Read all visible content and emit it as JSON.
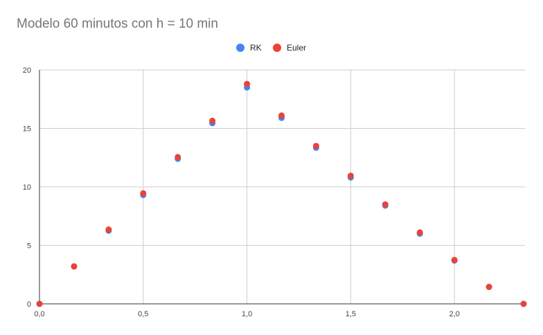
{
  "chart_data": {
    "type": "scatter",
    "title": "Modelo 60 minutos con h = 10 min",
    "xlabel": "",
    "ylabel": "",
    "xlim": [
      0,
      2.34
    ],
    "ylim": [
      0,
      20
    ],
    "x_ticks": [
      "0,0",
      "0,5",
      "1,0",
      "1,5",
      "2,0"
    ],
    "x_tick_values": [
      0,
      0.5,
      1.0,
      1.5,
      2.0
    ],
    "y_ticks": [
      "0",
      "5",
      "10",
      "15",
      "20"
    ],
    "y_tick_values": [
      0,
      5,
      10,
      15,
      20
    ],
    "grid": true,
    "legend_position": "top-center",
    "series": [
      {
        "name": "RK",
        "color": "#4285f4",
        "points": [
          [
            0,
            0
          ],
          [
            0.1667,
            3.2
          ],
          [
            0.3333,
            6.25
          ],
          [
            0.5,
            9.3
          ],
          [
            0.6667,
            12.4
          ],
          [
            0.8333,
            15.45
          ],
          [
            1.0,
            18.5
          ],
          [
            1.1667,
            15.9
          ],
          [
            1.3333,
            13.35
          ],
          [
            1.5,
            10.8
          ],
          [
            1.6667,
            8.4
          ],
          [
            1.8333,
            6.0
          ],
          [
            2.0,
            3.7
          ],
          [
            2.1667,
            1.45
          ],
          [
            2.3333,
            0
          ]
        ]
      },
      {
        "name": "Euler",
        "color": "#ea4335",
        "points": [
          [
            0,
            0
          ],
          [
            0.1667,
            3.2
          ],
          [
            0.3333,
            6.35
          ],
          [
            0.5,
            9.45
          ],
          [
            0.6667,
            12.55
          ],
          [
            0.8333,
            15.65
          ],
          [
            1.0,
            18.8
          ],
          [
            1.1667,
            16.1
          ],
          [
            1.3333,
            13.5
          ],
          [
            1.5,
            10.95
          ],
          [
            1.6667,
            8.5
          ],
          [
            1.8333,
            6.1
          ],
          [
            2.0,
            3.75
          ],
          [
            2.1667,
            1.45
          ],
          [
            2.3333,
            0
          ]
        ]
      }
    ]
  }
}
